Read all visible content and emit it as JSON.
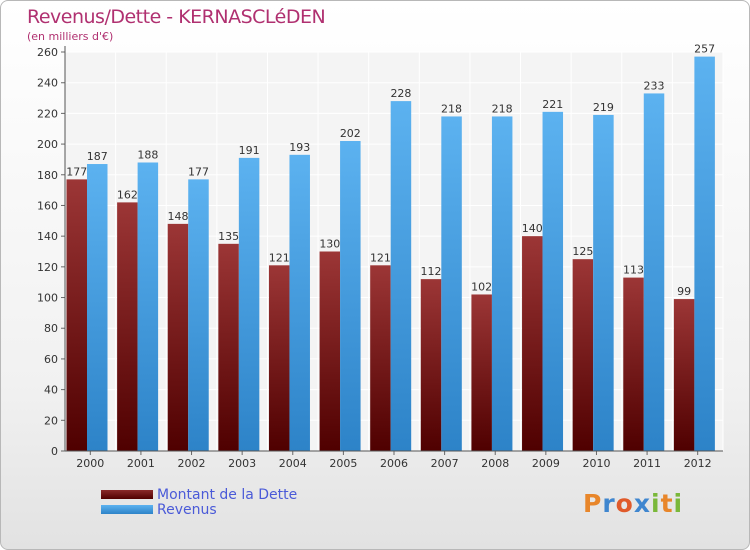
{
  "chart_data": {
    "type": "bar",
    "title": "Revenus/Dette - KERNASCLéDEN",
    "subtitle": "(en milliers d'€)",
    "categories": [
      "2000",
      "2001",
      "2002",
      "2003",
      "2004",
      "2005",
      "2006",
      "2007",
      "2008",
      "2009",
      "2010",
      "2011",
      "2012"
    ],
    "series": [
      {
        "name": "Montant de la Dette",
        "color": "#7a1616",
        "values": [
          177,
          162,
          148,
          135,
          121,
          130,
          121,
          112,
          102,
          140,
          125,
          113,
          99
        ]
      },
      {
        "name": "Revenus",
        "color": "#3d9ae0",
        "values": [
          187,
          188,
          177,
          191,
          193,
          202,
          228,
          218,
          218,
          221,
          219,
          233,
          257
        ]
      }
    ],
    "ylim": [
      0,
      260
    ],
    "yticks": [
      0,
      20,
      40,
      60,
      80,
      100,
      120,
      140,
      160,
      180,
      200,
      220,
      240,
      260
    ],
    "grid": true,
    "legend_position": "bottom-left"
  },
  "brand": {
    "letters": [
      {
        "ch": "P",
        "color": "#e8862a"
      },
      {
        "ch": "r",
        "color": "#3f86cf"
      },
      {
        "ch": "o",
        "color": "#e05a2a"
      },
      {
        "ch": "x",
        "color": "#3f86cf"
      },
      {
        "ch": "i",
        "color": "#7ab83a"
      },
      {
        "ch": "t",
        "color": "#e8862a"
      },
      {
        "ch": "i",
        "color": "#7ab83a"
      }
    ]
  }
}
